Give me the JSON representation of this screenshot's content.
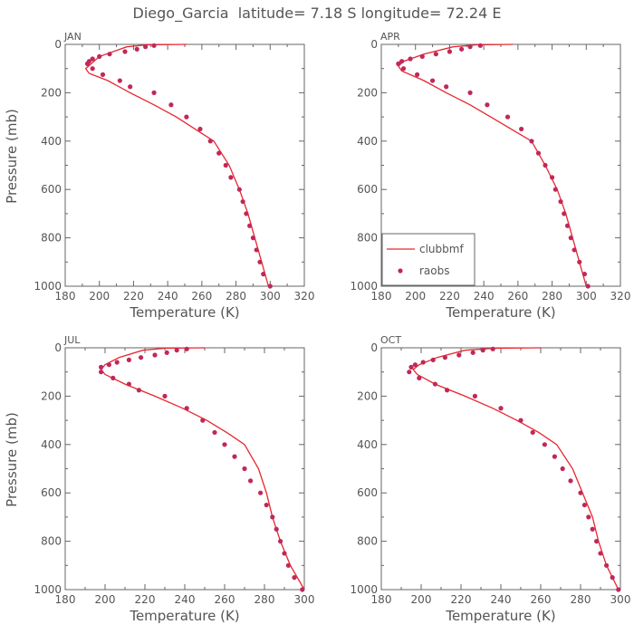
{
  "title": "Diego_Garcia  latitude= 7.18 S longitude= 72.24 E",
  "colors": {
    "model": "#e8262d",
    "obs": "#c0285a",
    "axis": "#666666",
    "text": "#555555"
  },
  "legend": {
    "location": "bottom-left of APR panel",
    "model_label": "clubbmf",
    "obs_label": "raobs"
  },
  "chart_data": [
    {
      "type": "line",
      "title": "JAN",
      "xlabel": "Temperature (K)",
      "ylabel": "Pressure (mb)",
      "xlim": [
        180,
        320
      ],
      "xticks": [
        180,
        200,
        220,
        240,
        260,
        280,
        300,
        320
      ],
      "ylim": [
        1000,
        0
      ],
      "yticks": [
        0,
        200,
        400,
        600,
        800,
        1000
      ],
      "series": [
        {
          "name": "clubbmf",
          "style": "line",
          "x": [
            251,
            228,
            216,
            200,
            192,
            194,
            205,
            218,
            232,
            245,
            256,
            267,
            276,
            282,
            287,
            291,
            295,
            299
          ],
          "y": [
            0,
            2,
            10,
            50,
            100,
            120,
            150,
            200,
            250,
            300,
            350,
            400,
            500,
            600,
            700,
            800,
            900,
            1000
          ]
        },
        {
          "name": "raobs",
          "style": "markers",
          "x": [
            232,
            227,
            222,
            215,
            206,
            200,
            196,
            194,
            193,
            196,
            202,
            212,
            218,
            232,
            242,
            251,
            259,
            265,
            270,
            274,
            277,
            282,
            284,
            286,
            288,
            290,
            292,
            294,
            296,
            300
          ],
          "y": [
            5,
            10,
            20,
            30,
            40,
            50,
            60,
            70,
            80,
            100,
            125,
            150,
            175,
            200,
            250,
            300,
            350,
            400,
            450,
            500,
            550,
            600,
            650,
            700,
            750,
            800,
            850,
            900,
            950,
            1000
          ]
        }
      ]
    },
    {
      "type": "line",
      "title": "APR",
      "xlabel": "Temperature (K)",
      "ylabel": "",
      "xlim": [
        180,
        320
      ],
      "xticks": [
        180,
        200,
        220,
        240,
        260,
        280,
        300,
        320
      ],
      "ylim": [
        1000,
        0
      ],
      "yticks": [
        0,
        200,
        400,
        600,
        800,
        1000
      ],
      "series": [
        {
          "name": "clubbmf",
          "style": "line",
          "x": [
            257,
            236,
            222,
            205,
            193,
            190,
            192,
            205,
            218,
            232,
            244,
            256,
            268,
            276,
            283,
            288,
            292,
            296,
            300
          ],
          "y": [
            0,
            2,
            10,
            40,
            70,
            90,
            110,
            150,
            200,
            250,
            300,
            350,
            400,
            500,
            600,
            700,
            800,
            900,
            1000
          ]
        },
        {
          "name": "raobs",
          "style": "markers",
          "x": [
            238,
            232,
            227,
            220,
            212,
            204,
            197,
            192,
            190,
            193,
            201,
            210,
            218,
            232,
            242,
            254,
            262,
            268,
            272,
            276,
            280,
            282,
            285,
            287,
            289,
            291,
            293,
            296,
            299,
            301
          ],
          "y": [
            5,
            10,
            20,
            30,
            40,
            50,
            60,
            70,
            80,
            100,
            125,
            150,
            175,
            200,
            250,
            300,
            350,
            400,
            450,
            500,
            550,
            600,
            650,
            700,
            750,
            800,
            850,
            900,
            950,
            1000
          ]
        }
      ]
    },
    {
      "type": "line",
      "title": "JUL",
      "xlabel": "Temperature (K)",
      "ylabel": "Pressure (mb)",
      "xlim": [
        180,
        300
      ],
      "xticks": [
        180,
        200,
        220,
        240,
        260,
        280,
        300
      ],
      "ylim": [
        1000,
        0
      ],
      "yticks": [
        0,
        200,
        400,
        600,
        800,
        1000
      ],
      "series": [
        {
          "name": "clubbmf",
          "style": "line",
          "x": [
            250,
            230,
            219,
            207,
            200,
            198,
            200,
            210,
            225,
            239,
            251,
            261,
            270,
            277,
            281,
            284,
            288,
            293,
            300
          ],
          "y": [
            0,
            2,
            10,
            40,
            70,
            90,
            110,
            150,
            200,
            250,
            300,
            350,
            400,
            500,
            600,
            700,
            800,
            900,
            1000
          ]
        },
        {
          "name": "raobs",
          "style": "markers",
          "x": [
            241,
            236,
            231,
            225,
            218,
            212,
            206,
            202,
            198,
            198,
            204,
            212,
            217,
            230,
            241,
            249,
            255,
            260,
            265,
            270,
            273,
            278,
            281,
            284,
            286,
            288,
            290,
            292,
            295,
            299
          ],
          "y": [
            5,
            10,
            20,
            30,
            40,
            50,
            60,
            70,
            80,
            100,
            125,
            150,
            175,
            200,
            250,
            300,
            350,
            400,
            450,
            500,
            550,
            600,
            650,
            700,
            750,
            800,
            850,
            900,
            950,
            1000
          ]
        }
      ]
    },
    {
      "type": "line",
      "title": "OCT",
      "xlabel": "Temperature (K)",
      "ylabel": "",
      "xlim": [
        180,
        300
      ],
      "xticks": [
        180,
        200,
        220,
        240,
        260,
        280,
        300
      ],
      "ylim": [
        1000,
        0
      ],
      "yticks": [
        0,
        200,
        400,
        600,
        800,
        1000
      ],
      "series": [
        {
          "name": "clubbmf",
          "style": "line",
          "x": [
            260,
            237,
            222,
            208,
            199,
            196,
            198,
            207,
            222,
            236,
            248,
            259,
            268,
            276,
            281,
            286,
            289,
            293,
            299
          ],
          "y": [
            0,
            2,
            10,
            40,
            70,
            90,
            110,
            150,
            200,
            250,
            300,
            350,
            400,
            500,
            600,
            700,
            800,
            900,
            1000
          ]
        },
        {
          "name": "raobs",
          "style": "markers",
          "x": [
            236,
            231,
            226,
            219,
            212,
            206,
            201,
            197,
            195,
            194,
            199,
            207,
            213,
            227,
            240,
            250,
            256,
            262,
            267,
            271,
            275,
            280,
            282,
            284,
            286,
            288,
            290,
            293,
            296,
            299
          ],
          "y": [
            5,
            10,
            20,
            30,
            40,
            50,
            60,
            70,
            80,
            100,
            125,
            150,
            175,
            200,
            250,
            300,
            350,
            400,
            450,
            500,
            550,
            600,
            650,
            700,
            750,
            800,
            850,
            900,
            950,
            1000
          ]
        }
      ]
    }
  ]
}
